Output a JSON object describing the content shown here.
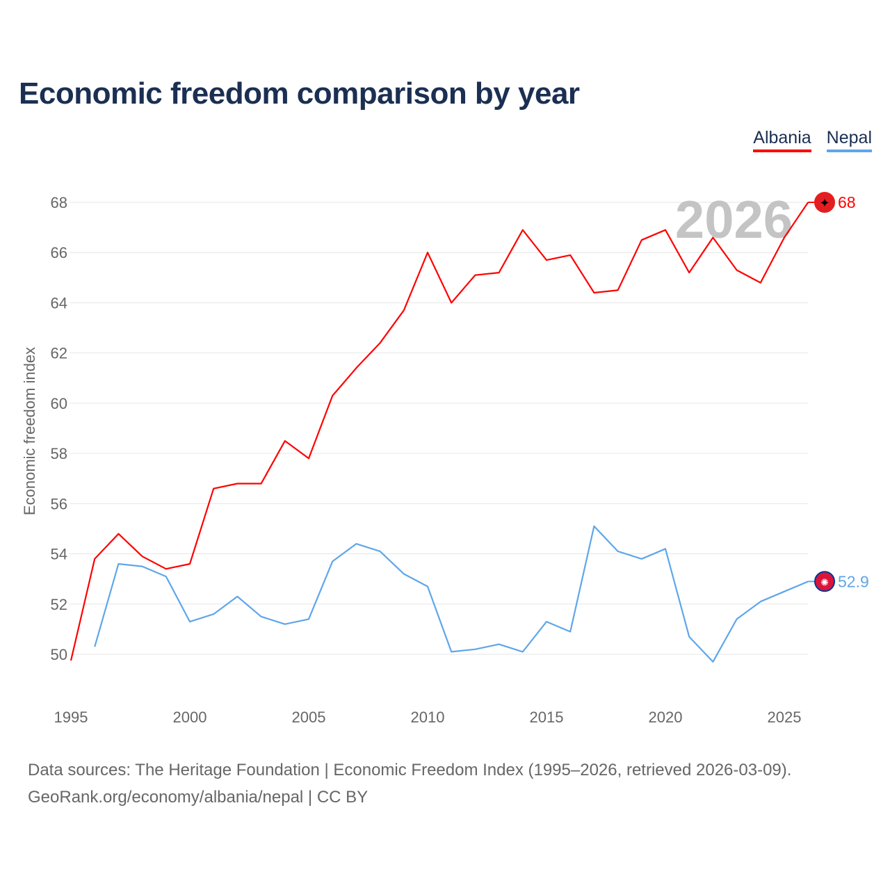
{
  "title": "Economic freedom comparison by year",
  "footer": {
    "line1": "Data sources: The Heritage Foundation | Economic Freedom Index (1995–2026, retrieved 2026-03-09).",
    "line2": "GeoRank.org/economy/albania/nepal | CC BY"
  },
  "chart_data": {
    "type": "line",
    "title": "Economic freedom comparison by year",
    "xlabel": "",
    "ylabel": "Economic freedom index",
    "year_watermark": "2026",
    "xlim": [
      1995,
      2026
    ],
    "ylim": [
      48.5,
      69.5
    ],
    "xticks": [
      1995,
      2000,
      2005,
      2010,
      2015,
      2020,
      2025
    ],
    "yticks": [
      50,
      52,
      54,
      56,
      58,
      60,
      62,
      64,
      66,
      68
    ],
    "grid": true,
    "legend_position": "top-right",
    "series": [
      {
        "name": "Albania",
        "color": "#ff0000",
        "end_label": "68",
        "x": [
          1995,
          1996,
          1997,
          1998,
          1999,
          2000,
          2001,
          2002,
          2003,
          2004,
          2005,
          2006,
          2007,
          2008,
          2009,
          2010,
          2011,
          2012,
          2013,
          2014,
          2015,
          2016,
          2017,
          2018,
          2019,
          2020,
          2021,
          2022,
          2023,
          2024,
          2025,
          2026
        ],
        "values": [
          49.75,
          53.8,
          54.8,
          53.9,
          53.4,
          53.6,
          56.6,
          56.8,
          56.8,
          58.5,
          57.8,
          60.3,
          61.4,
          62.4,
          63.7,
          66.0,
          64.0,
          65.1,
          65.2,
          66.9,
          65.7,
          65.9,
          64.4,
          64.5,
          66.5,
          66.9,
          65.2,
          66.6,
          65.3,
          64.8,
          66.6,
          68.0
        ]
      },
      {
        "name": "Nepal",
        "color": "#5ea6ea",
        "end_label": "52.9",
        "x": [
          1996,
          1997,
          1998,
          1999,
          2000,
          2001,
          2002,
          2003,
          2004,
          2005,
          2006,
          2007,
          2008,
          2009,
          2010,
          2011,
          2012,
          2013,
          2014,
          2015,
          2016,
          2017,
          2018,
          2019,
          2020,
          2021,
          2022,
          2023,
          2024,
          2025,
          2026
        ],
        "values": [
          50.3,
          53.6,
          53.5,
          53.1,
          51.3,
          51.6,
          52.3,
          51.5,
          51.2,
          51.4,
          53.7,
          54.4,
          54.1,
          53.2,
          52.7,
          50.1,
          50.2,
          50.4,
          50.1,
          51.3,
          50.9,
          55.1,
          54.1,
          53.8,
          54.2,
          50.7,
          49.7,
          51.4,
          52.1,
          52.5,
          52.9
        ]
      }
    ]
  }
}
